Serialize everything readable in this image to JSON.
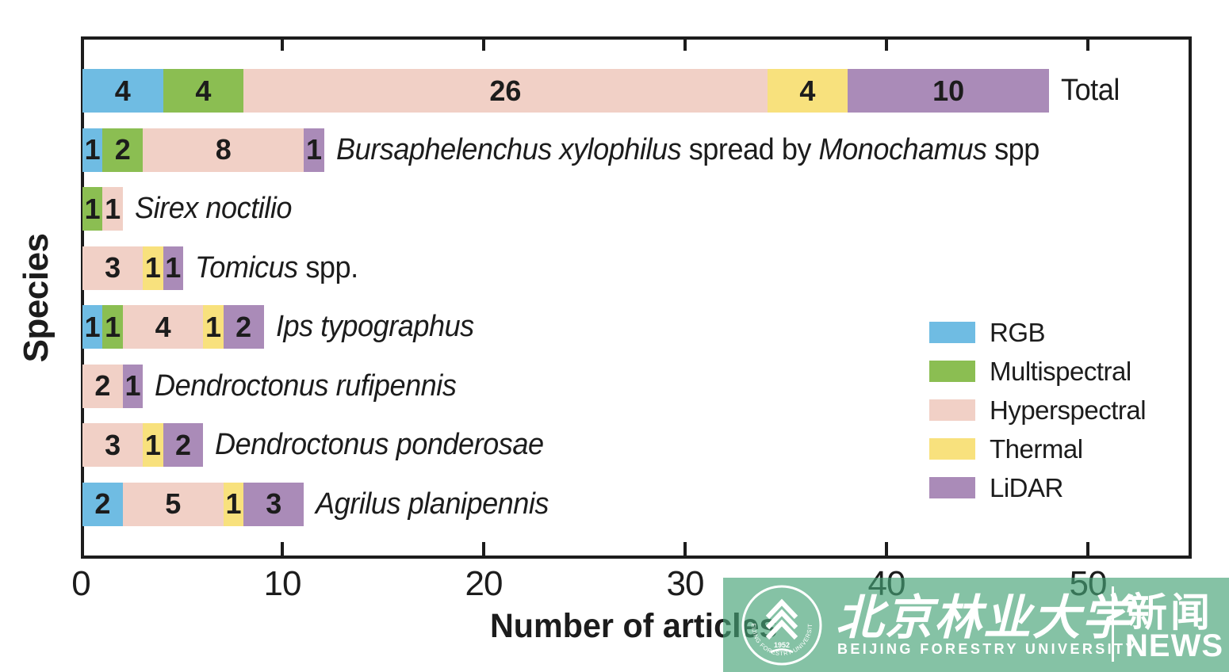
{
  "chart_data": {
    "type": "bar",
    "orientation": "horizontal_stacked",
    "title": "",
    "xlabel": "Number of articles",
    "ylabel": "Species",
    "xlim": [
      0,
      55
    ],
    "xticks": [
      0,
      10,
      20,
      30,
      40,
      50
    ],
    "grid": false,
    "legend_position": "middle-right",
    "sensors": [
      {
        "name": "RGB",
        "color": "#6FBCE3"
      },
      {
        "name": "Multispectral",
        "color": "#8BBE52"
      },
      {
        "name": "Hyperspectral",
        "color": "#F1D0C6"
      },
      {
        "name": "Thermal",
        "color": "#F8E17D"
      },
      {
        "name": "LiDAR",
        "color": "#AA8BB8"
      }
    ],
    "rows": [
      {
        "label_parts": [
          {
            "text": "Total",
            "italic": false
          }
        ],
        "values": [
          4,
          4,
          26,
          4,
          10
        ]
      },
      {
        "label_parts": [
          {
            "text": "Bursaphelenchus xylophilus",
            "italic": true
          },
          {
            "text": " spread by ",
            "italic": false
          },
          {
            "text": "Monochamus",
            "italic": true
          },
          {
            "text": " spp",
            "italic": false
          }
        ],
        "values": [
          1,
          2,
          8,
          0,
          1
        ]
      },
      {
        "label_parts": [
          {
            "text": "Sirex noctilio",
            "italic": true
          }
        ],
        "values": [
          0,
          1,
          1,
          0,
          0
        ]
      },
      {
        "label_parts": [
          {
            "text": "Tomicus",
            "italic": true
          },
          {
            "text": " spp.",
            "italic": false
          }
        ],
        "values": [
          0,
          0,
          3,
          1,
          1
        ]
      },
      {
        "label_parts": [
          {
            "text": "Ips typographus",
            "italic": true
          }
        ],
        "values": [
          1,
          1,
          4,
          1,
          2
        ]
      },
      {
        "label_parts": [
          {
            "text": "Dendroctonus rufipennis",
            "italic": true
          }
        ],
        "values": [
          0,
          0,
          2,
          0,
          1
        ]
      },
      {
        "label_parts": [
          {
            "text": "Dendroctonus ponderosae",
            "italic": true
          }
        ],
        "values": [
          0,
          0,
          3,
          1,
          2
        ]
      },
      {
        "label_parts": [
          {
            "text": "Agrilus planipennis",
            "italic": true
          }
        ],
        "values": [
          2,
          0,
          5,
          1,
          3
        ]
      }
    ]
  },
  "watermark": {
    "university_zh": "北京林业大学",
    "university_en": "BEIJING FORESTRY UNIVERSITY",
    "seal_ring_text": "BEIJING FORESTRY UNIVERSITY",
    "seal_year": "1952",
    "news_zh": "新闻",
    "news_en": "NEWS",
    "banner_color": "#46A377",
    "banner_opacity": 0.66
  },
  "colors": {
    "text": "#1c1c1c",
    "frame": "#1c1c1c",
    "background": "#FFFFFF"
  }
}
